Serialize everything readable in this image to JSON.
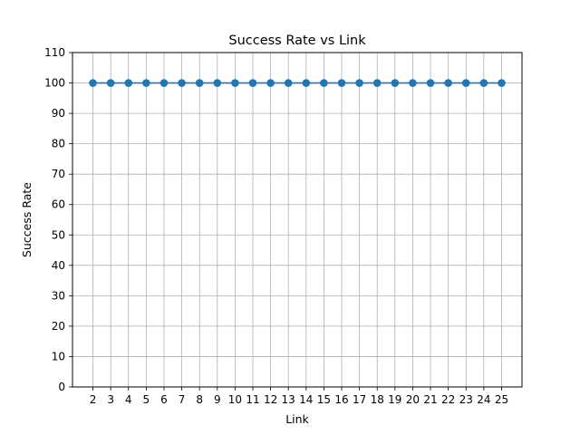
{
  "chart_data": {
    "type": "line",
    "title": "Success Rate vs Link",
    "xlabel": "Link",
    "ylabel": "Success Rate",
    "x": [
      2,
      3,
      4,
      5,
      6,
      7,
      8,
      9,
      10,
      11,
      12,
      13,
      14,
      15,
      16,
      17,
      18,
      19,
      20,
      21,
      22,
      23,
      24,
      25
    ],
    "series": [
      {
        "values": [
          100,
          100,
          100,
          100,
          100,
          100,
          100,
          100,
          100,
          100,
          100,
          100,
          100,
          100,
          100,
          100,
          100,
          100,
          100,
          100,
          100,
          100,
          100,
          100
        ],
        "color": "#1f77b4",
        "marker": "circle"
      }
    ],
    "xticks": [
      2,
      3,
      4,
      5,
      6,
      7,
      8,
      9,
      10,
      11,
      12,
      13,
      14,
      15,
      16,
      17,
      18,
      19,
      20,
      21,
      22,
      23,
      24,
      25
    ],
    "yticks": [
      0,
      10,
      20,
      30,
      40,
      50,
      60,
      70,
      80,
      90,
      100,
      110
    ],
    "xlim": [
      0.85,
      26.15
    ],
    "ylim": [
      0,
      110
    ],
    "grid": true,
    "colors": {
      "grid": "#b0b0b0",
      "axis": "#000000"
    }
  }
}
